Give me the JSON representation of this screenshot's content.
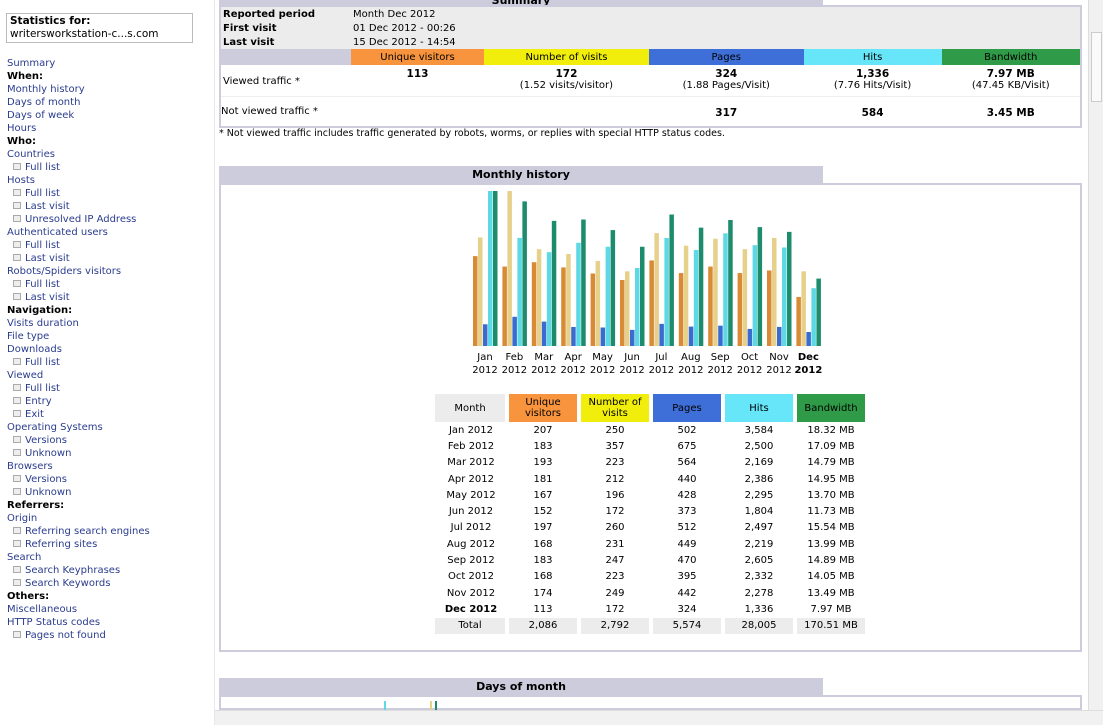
{
  "sidebar": {
    "stats_label": "Statistics for:",
    "site": "writersworkstation-c...s.com",
    "items": [
      {
        "t": "Summary",
        "k": "link"
      },
      {
        "t": "When:",
        "k": "hd"
      },
      {
        "t": "Monthly history",
        "k": "link"
      },
      {
        "t": "Days of month",
        "k": "link"
      },
      {
        "t": "Days of week",
        "k": "link"
      },
      {
        "t": "Hours",
        "k": "link"
      },
      {
        "t": "Who:",
        "k": "hd"
      },
      {
        "t": "Countries",
        "k": "link"
      },
      {
        "t": "Full list",
        "k": "sub"
      },
      {
        "t": "Hosts",
        "k": "link"
      },
      {
        "t": "Full list",
        "k": "sub"
      },
      {
        "t": "Last visit",
        "k": "sub"
      },
      {
        "t": "Unresolved IP Address",
        "k": "sub"
      },
      {
        "t": "Authenticated users",
        "k": "link"
      },
      {
        "t": "Full list",
        "k": "sub"
      },
      {
        "t": "Last visit",
        "k": "sub"
      },
      {
        "t": "Robots/Spiders visitors",
        "k": "link"
      },
      {
        "t": "Full list",
        "k": "sub"
      },
      {
        "t": "Last visit",
        "k": "sub"
      },
      {
        "t": "Navigation:",
        "k": "hd"
      },
      {
        "t": "Visits duration",
        "k": "link"
      },
      {
        "t": "File type",
        "k": "link"
      },
      {
        "t": "Downloads",
        "k": "link"
      },
      {
        "t": "Full list",
        "k": "sub"
      },
      {
        "t": "Viewed",
        "k": "link"
      },
      {
        "t": "Full list",
        "k": "sub"
      },
      {
        "t": "Entry",
        "k": "sub"
      },
      {
        "t": "Exit",
        "k": "sub"
      },
      {
        "t": "Operating Systems",
        "k": "link"
      },
      {
        "t": "Versions",
        "k": "sub"
      },
      {
        "t": "Unknown",
        "k": "sub"
      },
      {
        "t": "Browsers",
        "k": "link"
      },
      {
        "t": "Versions",
        "k": "sub"
      },
      {
        "t": "Unknown",
        "k": "sub"
      },
      {
        "t": "Referrers:",
        "k": "hd"
      },
      {
        "t": "Origin",
        "k": "link"
      },
      {
        "t": "Referring search engines",
        "k": "sub"
      },
      {
        "t": "Referring sites",
        "k": "sub"
      },
      {
        "t": "Search",
        "k": "link"
      },
      {
        "t": "Search Keyphrases",
        "k": "sub"
      },
      {
        "t": "Search Keywords",
        "k": "sub"
      },
      {
        "t": "Others:",
        "k": "hd"
      },
      {
        "t": "Miscellaneous",
        "k": "link"
      },
      {
        "t": "HTTP Status codes",
        "k": "link"
      },
      {
        "t": "Pages not found",
        "k": "sub"
      }
    ]
  },
  "summary": {
    "title": "Summary",
    "reported_label": "Reported period",
    "reported": "Month Dec 2012",
    "first_label": "First visit",
    "first": "01 Dec 2012 - 00:26",
    "last_label": "Last visit",
    "last": "15 Dec 2012 - 14:54",
    "headers": [
      "Unique visitors",
      "Number of visits",
      "Pages",
      "Hits",
      "Bandwidth"
    ],
    "viewed_label": "Viewed traffic *",
    "viewed": [
      "113",
      "172",
      "324",
      "1,336",
      "7.97 MB"
    ],
    "viewed_sub": [
      "",
      "(1.52 visits/visitor)",
      "(1.88 Pages/Visit)",
      "(7.76 Hits/Visit)",
      "(47.45 KB/Visit)"
    ],
    "not_viewed_label": "Not viewed traffic *",
    "not_viewed": [
      "",
      "",
      "317",
      "584",
      "3.45 MB"
    ],
    "note": "* Not viewed traffic includes traffic generated by robots, worms, or replies with special HTTP status codes."
  },
  "monthly": {
    "title": "Monthly history",
    "table_headers": [
      "Month",
      "Unique visitors",
      "Number of visits",
      "Pages",
      "Hits",
      "Bandwidth"
    ],
    "rows": [
      [
        "Jan 2012",
        "207",
        "250",
        "502",
        "3,584",
        "18.32 MB"
      ],
      [
        "Feb 2012",
        "183",
        "357",
        "675",
        "2,500",
        "17.09 MB"
      ],
      [
        "Mar 2012",
        "193",
        "223",
        "564",
        "2,169",
        "14.79 MB"
      ],
      [
        "Apr 2012",
        "181",
        "212",
        "440",
        "2,386",
        "14.95 MB"
      ],
      [
        "May 2012",
        "167",
        "196",
        "428",
        "2,295",
        "13.70 MB"
      ],
      [
        "Jun 2012",
        "152",
        "172",
        "373",
        "1,804",
        "11.73 MB"
      ],
      [
        "Jul 2012",
        "197",
        "260",
        "512",
        "2,497",
        "15.54 MB"
      ],
      [
        "Aug 2012",
        "168",
        "231",
        "449",
        "2,219",
        "13.99 MB"
      ],
      [
        "Sep 2012",
        "183",
        "247",
        "470",
        "2,605",
        "14.89 MB"
      ],
      [
        "Oct 2012",
        "168",
        "223",
        "395",
        "2,332",
        "14.05 MB"
      ],
      [
        "Nov 2012",
        "174",
        "249",
        "442",
        "2,278",
        "13.49 MB"
      ],
      [
        "Dec 2012",
        "113",
        "172",
        "324",
        "1,336",
        "7.97 MB"
      ]
    ],
    "total": [
      "Total",
      "2,086",
      "2,792",
      "5,574",
      "28,005",
      "170.51 MB"
    ]
  },
  "chart_data": {
    "type": "bar",
    "title": "Monthly history",
    "categories": [
      "Jan",
      "Feb",
      "Mar",
      "Apr",
      "May",
      "Jun",
      "Jul",
      "Aug",
      "Sep",
      "Oct",
      "Nov",
      "Dec"
    ],
    "year": "2012",
    "series": [
      {
        "name": "Unique visitors",
        "color": "#d98a35",
        "values": [
          207,
          183,
          193,
          181,
          167,
          152,
          197,
          168,
          183,
          168,
          174,
          113
        ]
      },
      {
        "name": "Number of visits",
        "color": "#e6d08a",
        "values": [
          250,
          357,
          223,
          212,
          196,
          172,
          260,
          231,
          247,
          223,
          249,
          172
        ]
      },
      {
        "name": "Pages",
        "color": "#3a6ccf",
        "values": [
          502,
          675,
          564,
          440,
          428,
          373,
          512,
          449,
          470,
          395,
          442,
          324
        ]
      },
      {
        "name": "Hits",
        "color": "#5dd8e4",
        "values": [
          3584,
          2500,
          2169,
          2386,
          2295,
          1804,
          2497,
          2219,
          2605,
          2332,
          2278,
          1336
        ]
      },
      {
        "name": "Bandwidth (MB)",
        "color": "#1c8c6c",
        "values": [
          18.32,
          17.09,
          14.79,
          14.95,
          13.7,
          11.73,
          15.54,
          13.99,
          14.89,
          14.05,
          13.49,
          7.97
        ]
      }
    ]
  },
  "days": {
    "title": "Days of month"
  }
}
